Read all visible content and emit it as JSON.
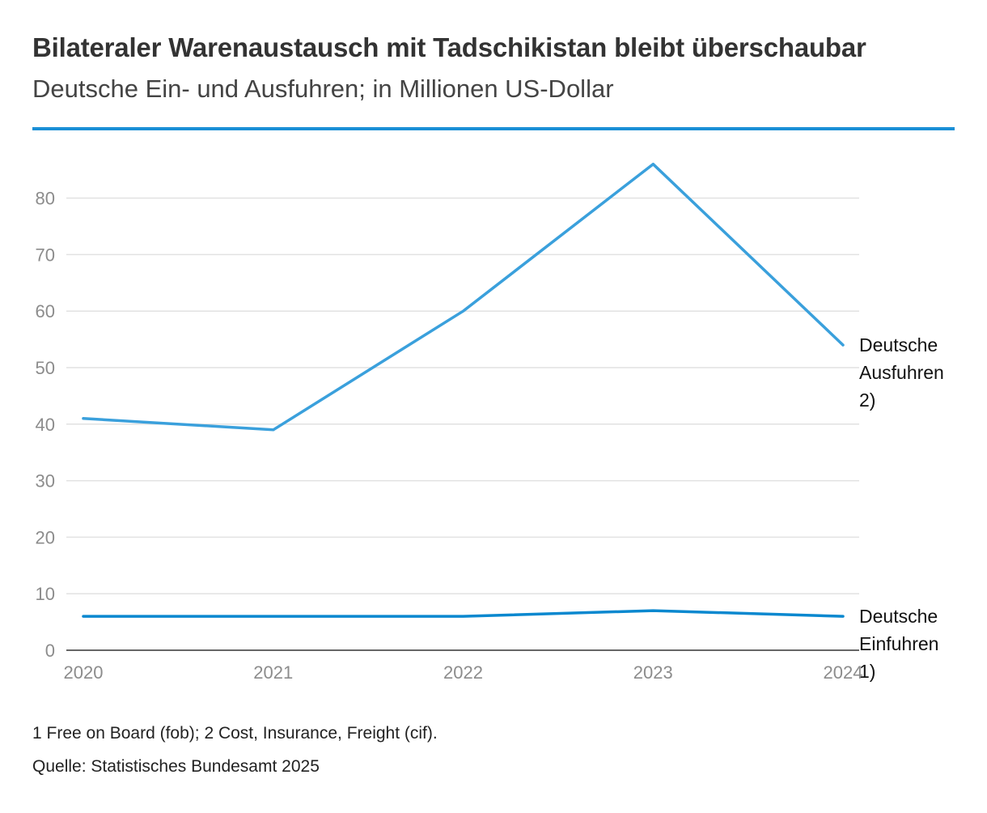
{
  "header": {
    "title": "Bilateraler Warenaustausch mit Tadschikistan bleibt überschaubar",
    "subtitle": "Deutsche Ein- und Ausfuhren; in Millionen US-Dollar"
  },
  "colors": {
    "accent_rule": "#1a8fd6",
    "exports_line": "#3aa0dc",
    "imports_line": "#0a88cf",
    "grid": "#e2e2e2",
    "axis": "#333333"
  },
  "chart_data": {
    "type": "line",
    "title": "Bilateraler Warenaustausch mit Tadschikistan bleibt überschaubar",
    "subtitle": "Deutsche Ein- und Ausfuhren; in Millionen US-Dollar",
    "xlabel": "",
    "ylabel": "",
    "x": [
      "2020",
      "2021",
      "2022",
      "2023",
      "2024"
    ],
    "ylim": [
      0,
      90
    ],
    "yticks": [
      0,
      10,
      20,
      30,
      40,
      50,
      60,
      70,
      80
    ],
    "grid": true,
    "series": [
      {
        "name": "Deutsche Ausfuhren 2)",
        "label_lines": [
          "Deutsche",
          "Ausfuhren",
          "2)"
        ],
        "color": "#3aa0dc",
        "values": [
          41,
          39,
          60,
          86,
          54
        ]
      },
      {
        "name": "Deutsche Einfuhren 1)",
        "label_lines": [
          "Deutsche",
          "Einfuhren",
          "1)"
        ],
        "color": "#0a88cf",
        "values": [
          6,
          6,
          6,
          7,
          6
        ]
      }
    ]
  },
  "footer": {
    "footnote": "1 Free on Board (fob); 2 Cost, Insurance, Freight (cif).",
    "source": "Quelle: Statistisches Bundesamt 2025"
  }
}
